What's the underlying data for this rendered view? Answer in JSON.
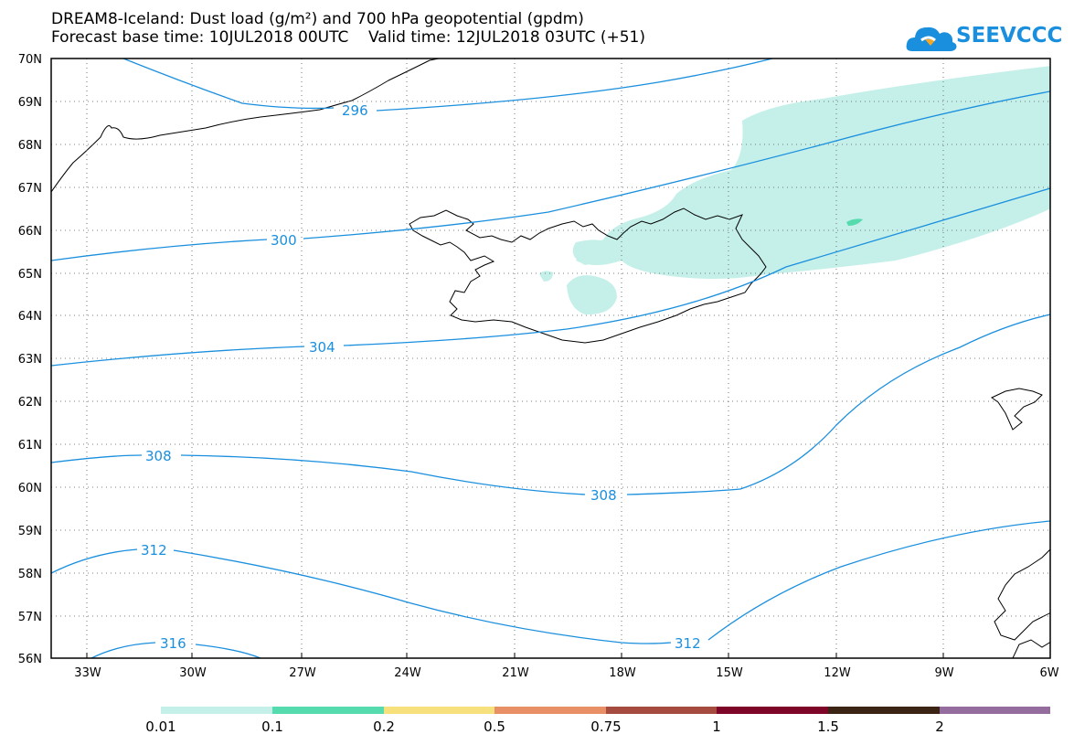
{
  "title": {
    "line1": "DREAM8-Iceland: Dust load (g/m²) and 700 hPa geopotential (gpdm)",
    "line2": "Forecast base time: 10JUL2018 00UTC    Valid time: 12JUL2018 03UTC (+51)"
  },
  "logo": {
    "text": "SEEVCCC",
    "icon": "cloud-icon"
  },
  "map": {
    "lat_labels": [
      "70N",
      "69N",
      "68N",
      "67N",
      "66N",
      "65N",
      "64N",
      "63N",
      "62N",
      "61N",
      "60N",
      "59N",
      "58N",
      "57N",
      "56N"
    ],
    "lon_labels": [
      "33W",
      "30W",
      "27W",
      "24W",
      "21W",
      "18W",
      "15W",
      "12W",
      "9W",
      "6W"
    ],
    "contour_labels": [
      "296",
      "300",
      "304",
      "308",
      "308",
      "312",
      "312",
      "316"
    ],
    "contour_color": "#1a8fde",
    "dust_color": "#c5f0ea"
  },
  "colorbar": {
    "labels": [
      "0.01",
      "0.1",
      "0.2",
      "0.5",
      "0.75",
      "1",
      "1.5",
      "2"
    ],
    "colors": [
      "#c5f0ea",
      "#55dbad",
      "#f7e17c",
      "#e88f66",
      "#a64b40",
      "#7c0528",
      "#3b2414",
      "#946c9e"
    ]
  }
}
